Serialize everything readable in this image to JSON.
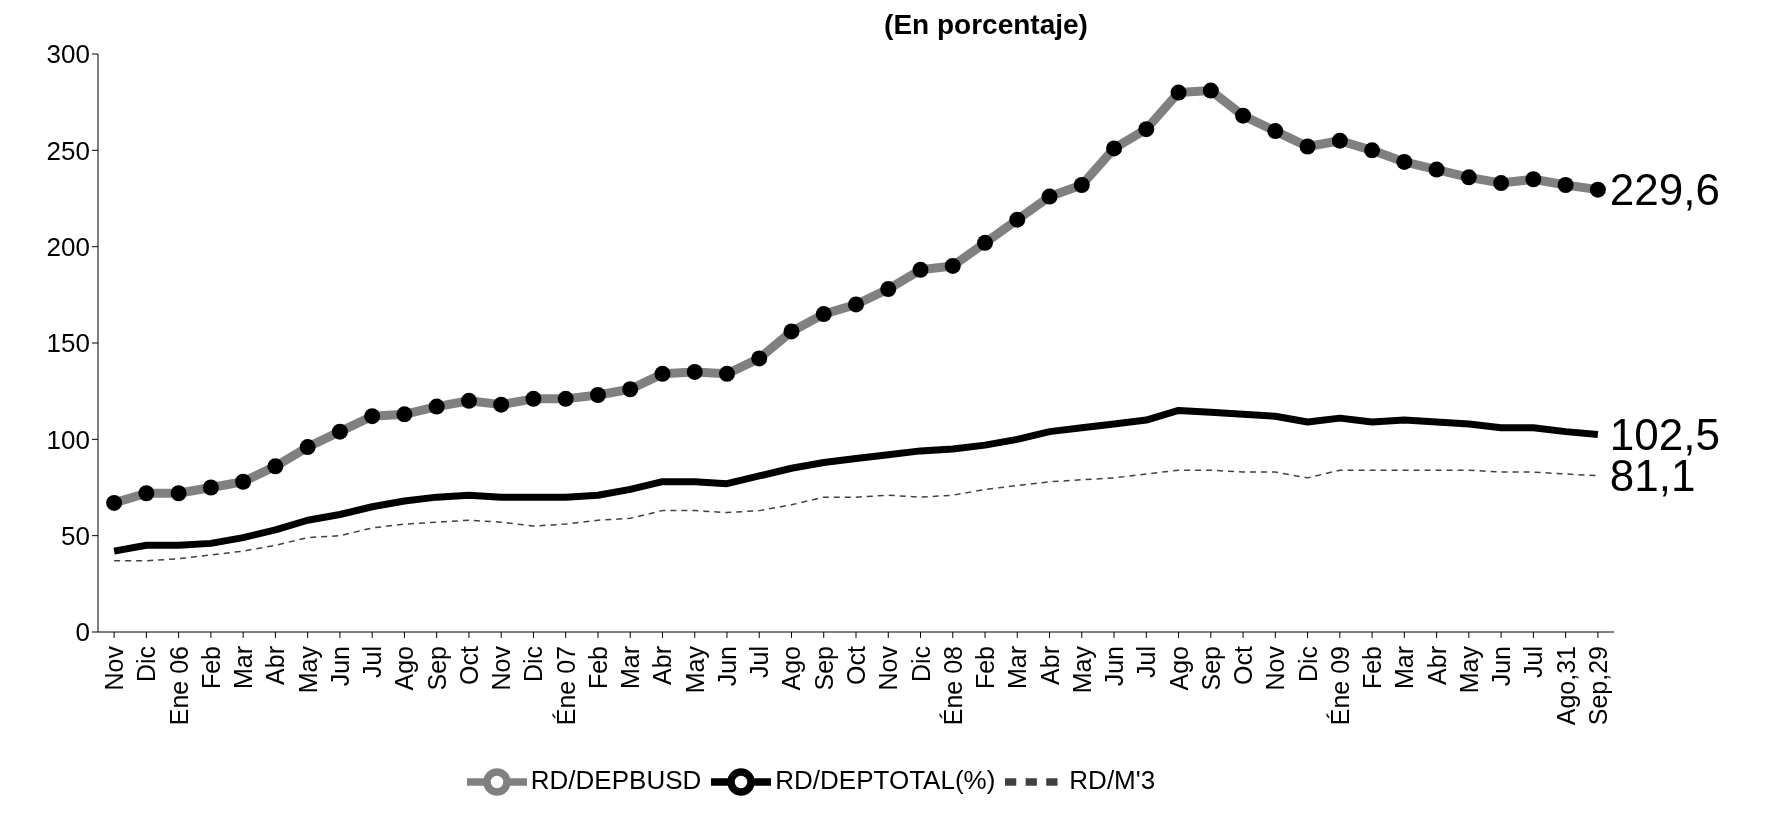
{
  "chart_data": {
    "type": "line",
    "title": "(En porcentaje)",
    "categories": [
      "Nov",
      "Dic",
      "Ene 06",
      "Feb",
      "Mar",
      "Abr",
      "May",
      "Jun",
      "Jul",
      "Ago",
      "Sep",
      "Oct",
      "Nov",
      "Dic",
      "Éne 07",
      "Feb",
      "Mar",
      "Abr",
      "May",
      "Jun",
      "Jul",
      "Ago",
      "Sep",
      "Oct",
      "Nov",
      "Dic",
      "Éne 08",
      "Feb",
      "Mar",
      "Abr",
      "May",
      "Jun",
      "Jul",
      "Ago",
      "Sep",
      "Oct",
      "Nov",
      "Dic",
      "Éne 09",
      "Feb",
      "Mar",
      "Abr",
      "May",
      "Jun",
      "Jul",
      "Ago,31",
      "Sep,29"
    ],
    "series": [
      {
        "name": "RD/M'3",
        "color": "#404040",
        "line_style": "dashed",
        "marker": "none",
        "values": [
          37,
          37,
          38,
          40,
          42,
          45,
          49,
          50,
          54,
          56,
          57,
          58,
          57,
          55,
          56,
          58,
          59,
          63,
          63,
          62,
          63,
          66,
          70,
          70,
          71,
          70,
          71,
          74,
          76,
          78,
          79,
          80,
          82,
          84,
          84,
          83,
          83,
          80,
          84,
          84,
          84,
          84,
          84,
          83,
          83,
          82,
          81.1
        ],
        "value_labels": [
          null,
          null,
          null,
          null,
          null,
          null,
          null,
          null,
          null,
          null,
          null,
          null,
          null,
          null,
          null,
          null,
          null,
          null,
          null,
          null,
          null,
          null,
          null,
          null,
          null,
          null,
          null,
          null,
          null,
          null,
          null,
          null,
          null,
          null,
          null,
          null,
          null,
          null,
          null,
          null,
          null,
          null,
          null,
          null,
          null,
          null,
          "81,1"
        ]
      },
      {
        "name": "RD/DEPBUSD",
        "color": "#808080",
        "line_style": "solid",
        "marker": "circle",
        "values": [
          67,
          72,
          72,
          75,
          78,
          86,
          96,
          104,
          112,
          113,
          117,
          120,
          118,
          121,
          121,
          123,
          126,
          134,
          135,
          134,
          142,
          156,
          165,
          170,
          178,
          188,
          190,
          202,
          214,
          226,
          232,
          251,
          261,
          280,
          281,
          268,
          260,
          252,
          255,
          250,
          244,
          240,
          236,
          233,
          235,
          232,
          229.6
        ],
        "value_labels": [
          null,
          null,
          null,
          null,
          null,
          null,
          null,
          null,
          null,
          null,
          null,
          null,
          null,
          null,
          null,
          null,
          null,
          null,
          null,
          null,
          null,
          null,
          null,
          null,
          null,
          null,
          null,
          null,
          null,
          null,
          null,
          null,
          null,
          null,
          null,
          null,
          null,
          null,
          null,
          null,
          null,
          null,
          null,
          null,
          null,
          null,
          "229,6"
        ]
      },
      {
        "name": "RD/DEPTOTAL(%)",
        "color": "#000000",
        "line_style": "solid",
        "marker": "none",
        "values": [
          42,
          45,
          45,
          46,
          49,
          53,
          58,
          61,
          65,
          68,
          70,
          71,
          70,
          70,
          70,
          71,
          74,
          78,
          78,
          77,
          81,
          85,
          88,
          90,
          92,
          94,
          95,
          97,
          100,
          104,
          106,
          108,
          110,
          115,
          114,
          113,
          112,
          109,
          111,
          109,
          110,
          109,
          108,
          106,
          106,
          104,
          102.5
        ],
        "value_labels": [
          null,
          null,
          null,
          null,
          null,
          null,
          null,
          null,
          null,
          null,
          null,
          null,
          null,
          null,
          null,
          null,
          null,
          null,
          null,
          null,
          null,
          null,
          null,
          null,
          null,
          null,
          null,
          null,
          null,
          null,
          null,
          null,
          null,
          null,
          null,
          null,
          null,
          null,
          null,
          null,
          null,
          null,
          null,
          null,
          null,
          null,
          "102,5"
        ]
      }
    ],
    "ylim": [
      0,
      300
    ],
    "yticks": [
      0,
      50,
      100,
      150,
      200,
      250,
      300
    ],
    "grid": false,
    "legend": "bottom"
  }
}
